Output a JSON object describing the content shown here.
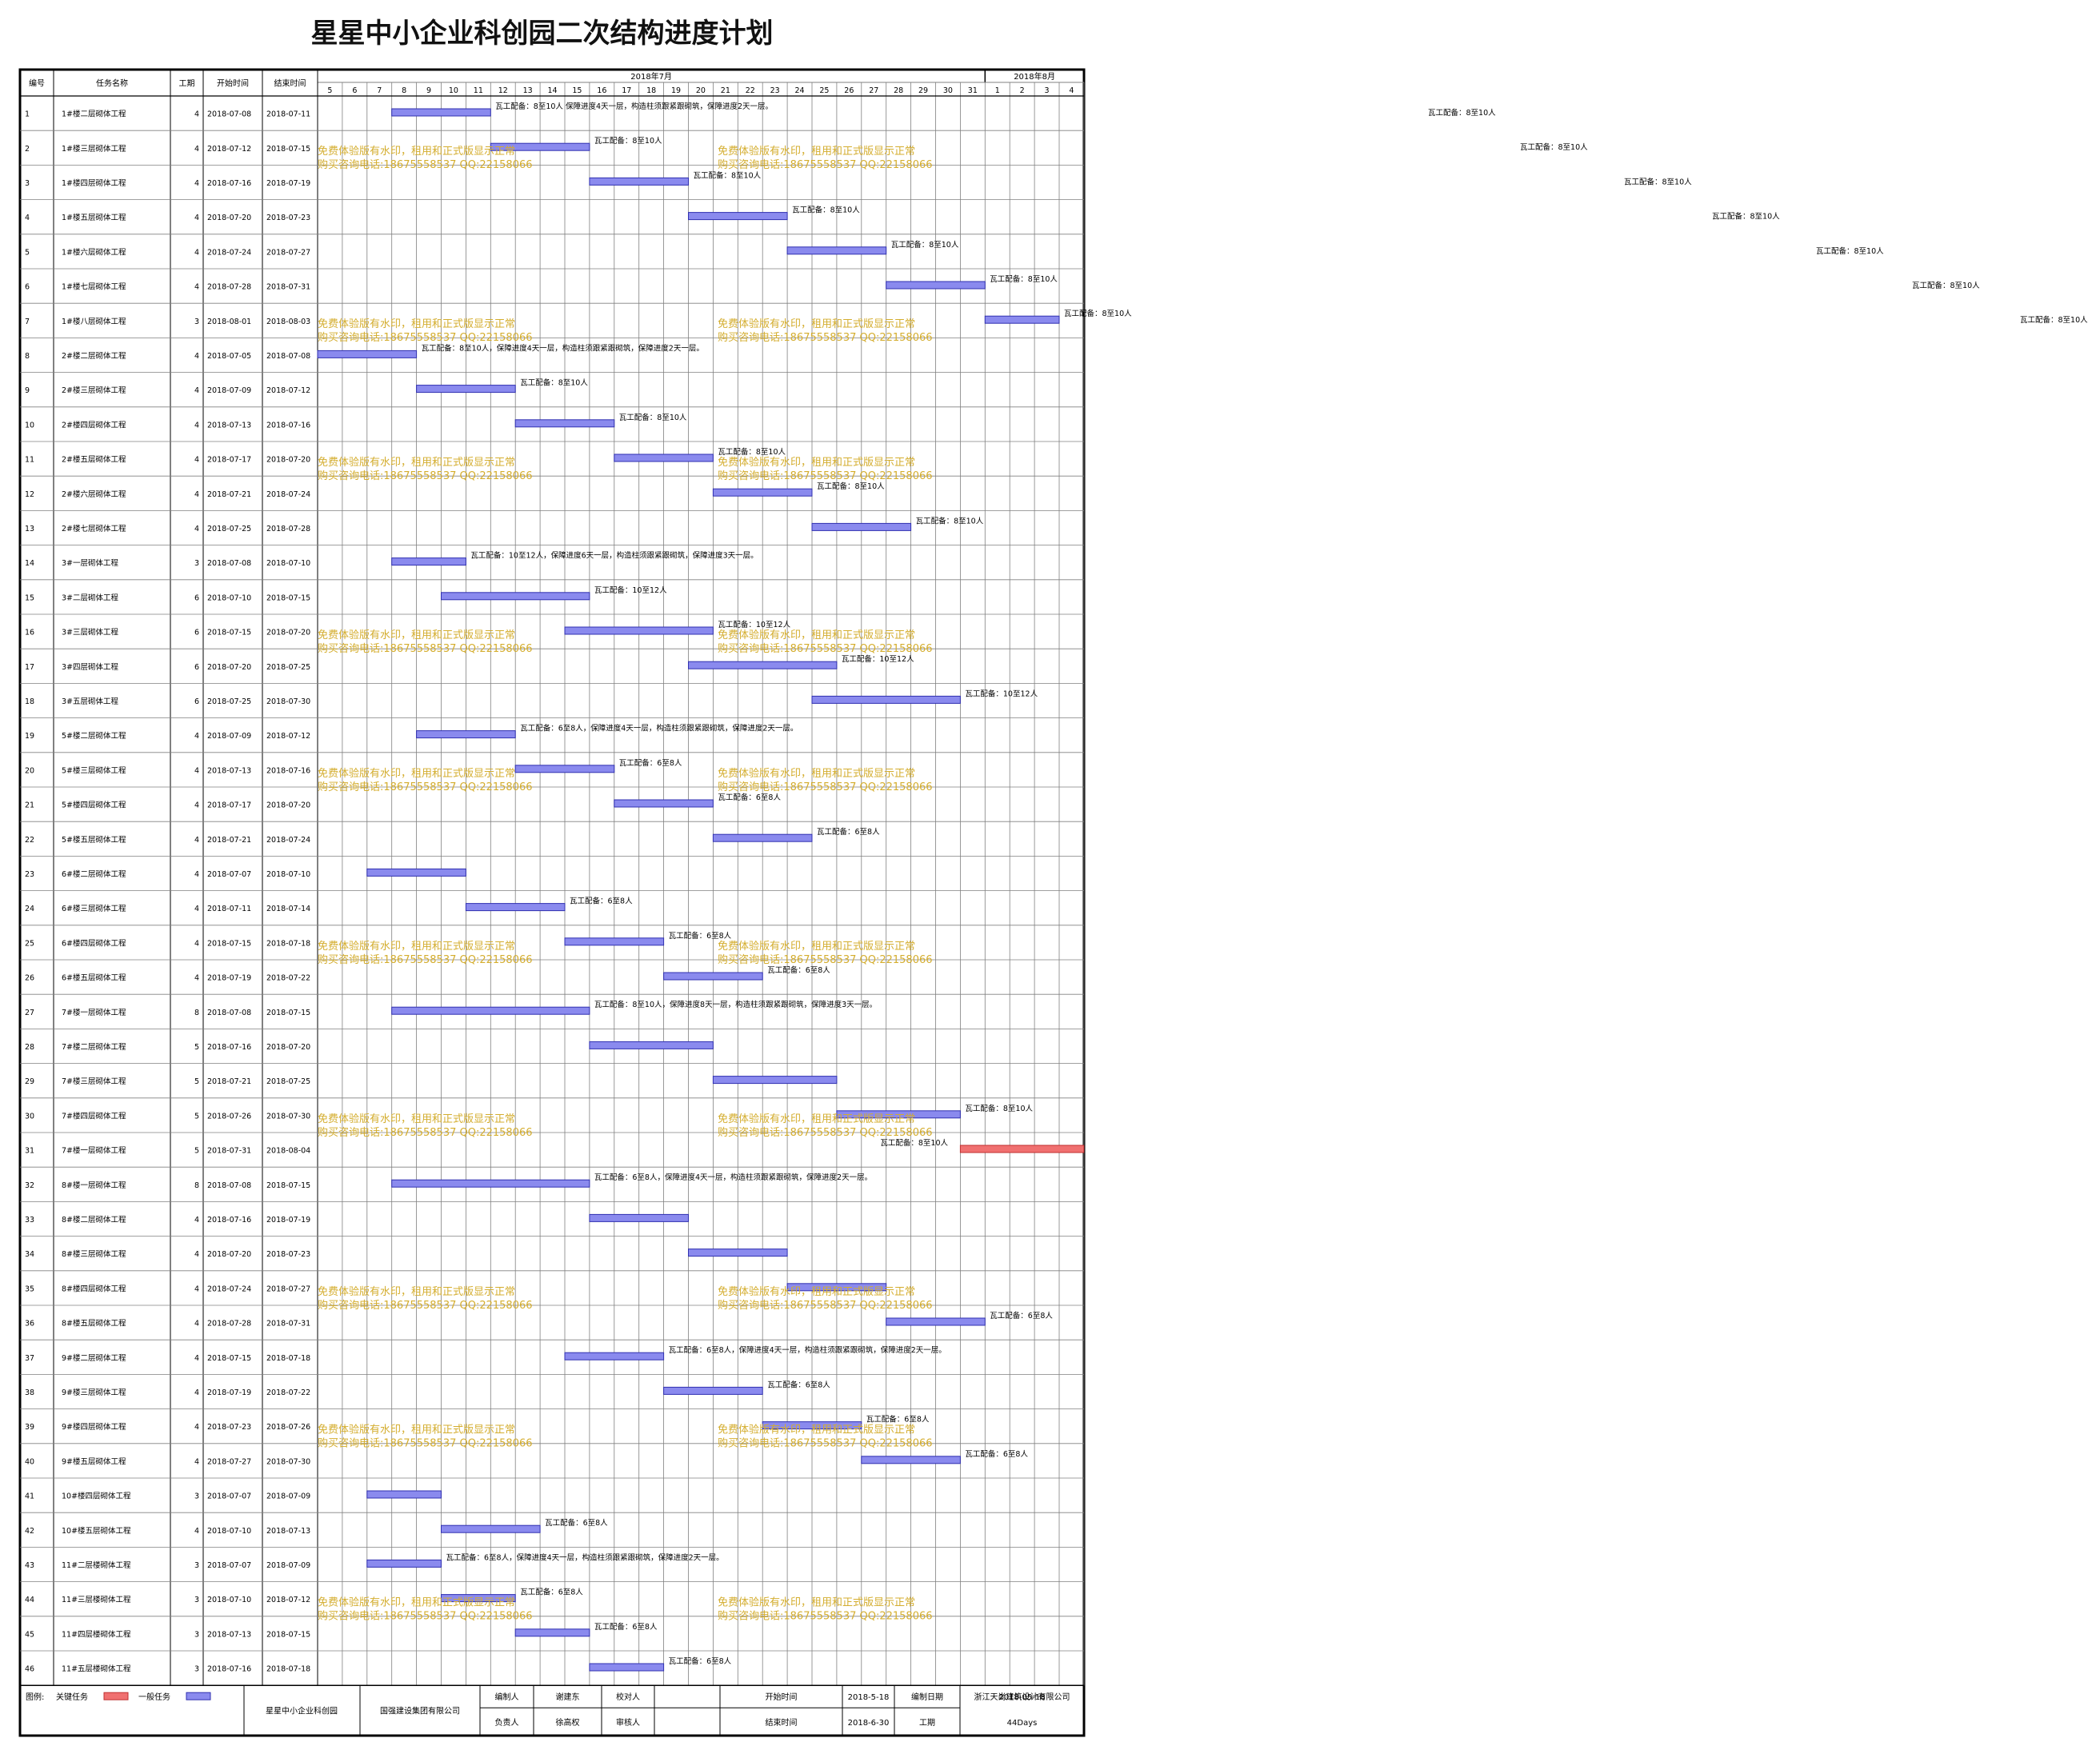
{
  "title": "星星中小企业科创园二次结构进度计划",
  "headers": {
    "id": "编号",
    "name": "任务名称",
    "duration": "工期",
    "start": "开始时间",
    "end": "结束时间"
  },
  "months": [
    {
      "label": "2018年7月",
      "from_day": 5,
      "to_day": 31
    },
    {
      "label": "2018年8月",
      "from_day": 32,
      "to_day": 35
    }
  ],
  "day_labels": [
    "5",
    "6",
    "7",
    "8",
    "9",
    "10",
    "11",
    "12",
    "13",
    "14",
    "15",
    "16",
    "17",
    "18",
    "19",
    "20",
    "21",
    "22",
    "23",
    "24",
    "25",
    "26",
    "27",
    "28",
    "29",
    "30",
    "31",
    "1",
    "2",
    "3",
    "4"
  ],
  "watermark": {
    "line1": "免费体验版有水印，租用和正式版显示正常",
    "line2": "购买咨询电话:18675558537 QQ:22158066"
  },
  "chart_data": {
    "type": "gantt",
    "title": "星星中小企业科创园二次结构进度计划",
    "x_axis": {
      "unit": "day",
      "range": [
        "2018-07-05",
        "2018-08-04"
      ]
    },
    "legend": [
      {
        "label": "关键任务",
        "color": "#f07070"
      },
      {
        "label": "一般任务",
        "color": "#8a8aee"
      }
    ],
    "tasks": [
      {
        "id": "1",
        "name": "1#楼二层砌体工程",
        "duration": 4,
        "start": "2018-07-08",
        "end": "2018-07-11",
        "note": "瓦工配备：8至10人 保障进度4天一层，构造柱须跟紧跟砌筑，保障进度2天一层。",
        "critical": false
      },
      {
        "id": "2",
        "name": "1#楼三层砌体工程",
        "duration": 4,
        "start": "2018-07-12",
        "end": "2018-07-15",
        "note": "瓦工配备：8至10人",
        "critical": false
      },
      {
        "id": "3",
        "name": "1#楼四层砌体工程",
        "duration": 4,
        "start": "2018-07-16",
        "end": "2018-07-19",
        "note": "瓦工配备：8至10人",
        "critical": false
      },
      {
        "id": "4",
        "name": "1#楼五层砌体工程",
        "duration": 4,
        "start": "2018-07-20",
        "end": "2018-07-23",
        "note": "瓦工配备：8至10人",
        "critical": false
      },
      {
        "id": "5",
        "name": "1#楼六层砌体工程",
        "duration": 4,
        "start": "2018-07-24",
        "end": "2018-07-27",
        "note": "瓦工配备：8至10人",
        "critical": false
      },
      {
        "id": "6",
        "name": "1#楼七层砌体工程",
        "duration": 4,
        "start": "2018-07-28",
        "end": "2018-07-31",
        "note": "瓦工配备：8至10人",
        "critical": false
      },
      {
        "id": "7",
        "name": "1#楼八层砌体工程",
        "duration": 3,
        "start": "2018-08-01",
        "end": "2018-08-03",
        "note": "瓦工配备：8至10人",
        "critical": false
      },
      {
        "id": "8",
        "name": "2#楼二层砌体工程",
        "duration": 4,
        "start": "2018-07-05",
        "end": "2018-07-08",
        "note": "瓦工配备：8至10人，保障进度4天一层，构造柱须跟紧跟砌筑，保障进度2天一层。",
        "critical": false
      },
      {
        "id": "9",
        "name": "2#楼三层砌体工程",
        "duration": 4,
        "start": "2018-07-09",
        "end": "2018-07-12",
        "note": "瓦工配备：8至10人",
        "critical": false
      },
      {
        "id": "10",
        "name": "2#楼四层砌体工程",
        "duration": 4,
        "start": "2018-07-13",
        "end": "2018-07-16",
        "note": "瓦工配备：8至10人",
        "critical": false
      },
      {
        "id": "11",
        "name": "2#楼五层砌体工程",
        "duration": 4,
        "start": "2018-07-17",
        "end": "2018-07-20",
        "note": "瓦工配备：8至10人",
        "critical": false
      },
      {
        "id": "12",
        "name": "2#楼六层砌体工程",
        "duration": 4,
        "start": "2018-07-21",
        "end": "2018-07-24",
        "note": "瓦工配备：8至10人",
        "critical": false
      },
      {
        "id": "13",
        "name": "2#楼七层砌体工程",
        "duration": 4,
        "start": "2018-07-25",
        "end": "2018-07-28",
        "note": "瓦工配备：8至10人",
        "critical": false
      },
      {
        "id": "14",
        "name": "3#一层砌体工程",
        "duration": 3,
        "start": "2018-07-08",
        "end": "2018-07-10",
        "note": "瓦工配备：10至12人，保障进度6天一层，构造柱须跟紧跟砌筑，保障进度3天一层。",
        "critical": false
      },
      {
        "id": "15",
        "name": "3#二层砌体工程",
        "duration": 6,
        "start": "2018-07-10",
        "end": "2018-07-15",
        "note": "瓦工配备：10至12人",
        "critical": false
      },
      {
        "id": "16",
        "name": "3#三层砌体工程",
        "duration": 6,
        "start": "2018-07-15",
        "end": "2018-07-20",
        "note": "瓦工配备：10至12人",
        "critical": false
      },
      {
        "id": "17",
        "name": "3#四层砌体工程",
        "duration": 6,
        "start": "2018-07-20",
        "end": "2018-07-25",
        "note": "瓦工配备：10至12人",
        "critical": false
      },
      {
        "id": "18",
        "name": "3#五层砌体工程",
        "duration": 6,
        "start": "2018-07-25",
        "end": "2018-07-30",
        "note": "瓦工配备：10至12人",
        "critical": false
      },
      {
        "id": "19",
        "name": "5#楼二层砌体工程",
        "duration": 4,
        "start": "2018-07-09",
        "end": "2018-07-12",
        "note": "瓦工配备：6至8人，保障进度4天一层，构造柱须跟紧跟砌筑，保障进度2天一层。",
        "critical": false
      },
      {
        "id": "20",
        "name": "5#楼三层砌体工程",
        "duration": 4,
        "start": "2018-07-13",
        "end": "2018-07-16",
        "note": "瓦工配备：6至8人",
        "critical": false
      },
      {
        "id": "21",
        "name": "5#楼四层砌体工程",
        "duration": 4,
        "start": "2018-07-17",
        "end": "2018-07-20",
        "note": "瓦工配备：6至8人",
        "critical": false
      },
      {
        "id": "22",
        "name": "5#楼五层砌体工程",
        "duration": 4,
        "start": "2018-07-21",
        "end": "2018-07-24",
        "note": "瓦工配备：6至8人",
        "critical": false
      },
      {
        "id": "23",
        "name": "6#楼二层砌体工程",
        "duration": 4,
        "start": "2018-07-07",
        "end": "2018-07-10",
        "note": "",
        "critical": false
      },
      {
        "id": "24",
        "name": "6#楼三层砌体工程",
        "duration": 4,
        "start": "2018-07-11",
        "end": "2018-07-14",
        "note": "瓦工配备：6至8人",
        "critical": false
      },
      {
        "id": "25",
        "name": "6#楼四层砌体工程",
        "duration": 4,
        "start": "2018-07-15",
        "end": "2018-07-18",
        "note": "瓦工配备：6至8人",
        "critical": false
      },
      {
        "id": "26",
        "name": "6#楼五层砌体工程",
        "duration": 4,
        "start": "2018-07-19",
        "end": "2018-07-22",
        "note": "瓦工配备：6至8人",
        "critical": false
      },
      {
        "id": "27",
        "name": "7#楼一层砌体工程",
        "duration": 8,
        "start": "2018-07-08",
        "end": "2018-07-15",
        "note": "瓦工配备：8至10人，保障进度8天一层，构造柱须跟紧跟砌筑，保障进度3天一层。",
        "critical": false
      },
      {
        "id": "28",
        "name": "7#楼二层砌体工程",
        "duration": 5,
        "start": "2018-07-16",
        "end": "2018-07-20",
        "note": "",
        "critical": false
      },
      {
        "id": "29",
        "name": "7#楼三层砌体工程",
        "duration": 5,
        "start": "2018-07-21",
        "end": "2018-07-25",
        "note": "",
        "critical": false
      },
      {
        "id": "30",
        "name": "7#楼四层砌体工程",
        "duration": 5,
        "start": "2018-07-26",
        "end": "2018-07-30",
        "note": "瓦工配备：8至10人",
        "critical": false
      },
      {
        "id": "31",
        "name": "7#楼一层砌体工程",
        "duration": 5,
        "start": "2018-07-31",
        "end": "2018-08-04",
        "note": "瓦工配备：8至10人",
        "critical": true
      },
      {
        "id": "32",
        "name": "8#楼一层砌体工程",
        "duration": 8,
        "start": "2018-07-08",
        "end": "2018-07-15",
        "note": "瓦工配备：6至8人，保障进度4天一层，构造柱须跟紧跟砌筑，保障进度2天一层。",
        "critical": false
      },
      {
        "id": "33",
        "name": "8#楼二层砌体工程",
        "duration": 4,
        "start": "2018-07-16",
        "end": "2018-07-19",
        "note": "",
        "critical": false
      },
      {
        "id": "34",
        "name": "8#楼三层砌体工程",
        "duration": 4,
        "start": "2018-07-20",
        "end": "2018-07-23",
        "note": "",
        "critical": false
      },
      {
        "id": "35",
        "name": "8#楼四层砌体工程",
        "duration": 4,
        "start": "2018-07-24",
        "end": "2018-07-27",
        "note": "",
        "critical": false
      },
      {
        "id": "36",
        "name": "8#楼五层砌体工程",
        "duration": 4,
        "start": "2018-07-28",
        "end": "2018-07-31",
        "note": "瓦工配备：6至8人",
        "critical": false
      },
      {
        "id": "37",
        "name": "9#楼二层砌体工程",
        "duration": 4,
        "start": "2018-07-15",
        "end": "2018-07-18",
        "note": "瓦工配备：6至8人，保障进度4天一层，构造柱须跟紧跟砌筑，保障进度2天一层。",
        "critical": false
      },
      {
        "id": "38",
        "name": "9#楼三层砌体工程",
        "duration": 4,
        "start": "2018-07-19",
        "end": "2018-07-22",
        "note": "瓦工配备：6至8人",
        "critical": false
      },
      {
        "id": "39",
        "name": "9#楼四层砌体工程",
        "duration": 4,
        "start": "2018-07-23",
        "end": "2018-07-26",
        "note": "瓦工配备：6至8人",
        "critical": false
      },
      {
        "id": "40",
        "name": "9#楼五层砌体工程",
        "duration": 4,
        "start": "2018-07-27",
        "end": "2018-07-30",
        "note": "瓦工配备：6至8人",
        "critical": false
      },
      {
        "id": "41",
        "name": "10#楼四层砌体工程",
        "duration": 3,
        "start": "2018-07-07",
        "end": "2018-07-09",
        "note": "",
        "critical": false
      },
      {
        "id": "42",
        "name": "10#楼五层砌体工程",
        "duration": 4,
        "start": "2018-07-10",
        "end": "2018-07-13",
        "note": "瓦工配备：6至8人",
        "critical": false
      },
      {
        "id": "43",
        "name": "11#二层楼砌体工程",
        "duration": 3,
        "start": "2018-07-07",
        "end": "2018-07-09",
        "note": "瓦工配备：6至8人，保障进度4天一层，构造柱须跟紧跟砌筑，保障进度2天一层。",
        "critical": false
      },
      {
        "id": "44",
        "name": "11#三层楼砌体工程",
        "duration": 3,
        "start": "2018-07-10",
        "end": "2018-07-12",
        "note": "瓦工配备：6至8人",
        "critical": false
      },
      {
        "id": "45",
        "name": "11#四层楼砌体工程",
        "duration": 3,
        "start": "2018-07-13",
        "end": "2018-07-15",
        "note": "瓦工配备：6至8人",
        "critical": false
      },
      {
        "id": "46",
        "name": "11#五层楼砌体工程",
        "duration": 3,
        "start": "2018-07-16",
        "end": "2018-07-18",
        "note": "瓦工配备：6至8人",
        "critical": false
      }
    ]
  },
  "outside_notes": [
    {
      "row": 1,
      "text": "瓦工配备：8至10人"
    },
    {
      "row": 2,
      "text": "瓦工配备：8至10人"
    },
    {
      "row": 3,
      "text": "瓦工配备：8至10人"
    },
    {
      "row": 4,
      "text": "瓦工配备：8至10人"
    },
    {
      "row": 5,
      "text": "瓦工配备：8至10人"
    },
    {
      "row": 6,
      "text": "瓦工配备：8至10人"
    },
    {
      "row": 7,
      "text": "瓦工配备：8至10人"
    }
  ],
  "footer": {
    "legend_label": "图例:",
    "critical_label": "关键任务",
    "general_label": "一般任务",
    "project": "星星中小企业科创园",
    "company": "国强建设集团有限公司",
    "prepared_by_label": "编制人",
    "prepared_by": "谢建东",
    "checker_label": "校对人",
    "responsible_label": "负责人",
    "responsible": "徐高权",
    "reviewer_label": "审核人",
    "start_label": "开始时间",
    "start": "2018-5-18",
    "end_label": "结束时间",
    "end": "2018-6-30",
    "compile_date_label": "编制日期",
    "compile_date": "2018-05-18",
    "duration_label": "工期",
    "duration": "44Days",
    "designer": "浙江天尚建筑设计有限公司"
  },
  "colors": {
    "general_bar": "#8a8aee",
    "general_bar_border": "#3030b0",
    "critical_bar": "#f07070",
    "critical_text": "#e00000",
    "watermark": "#d4ad2e",
    "grid": "#808080"
  }
}
